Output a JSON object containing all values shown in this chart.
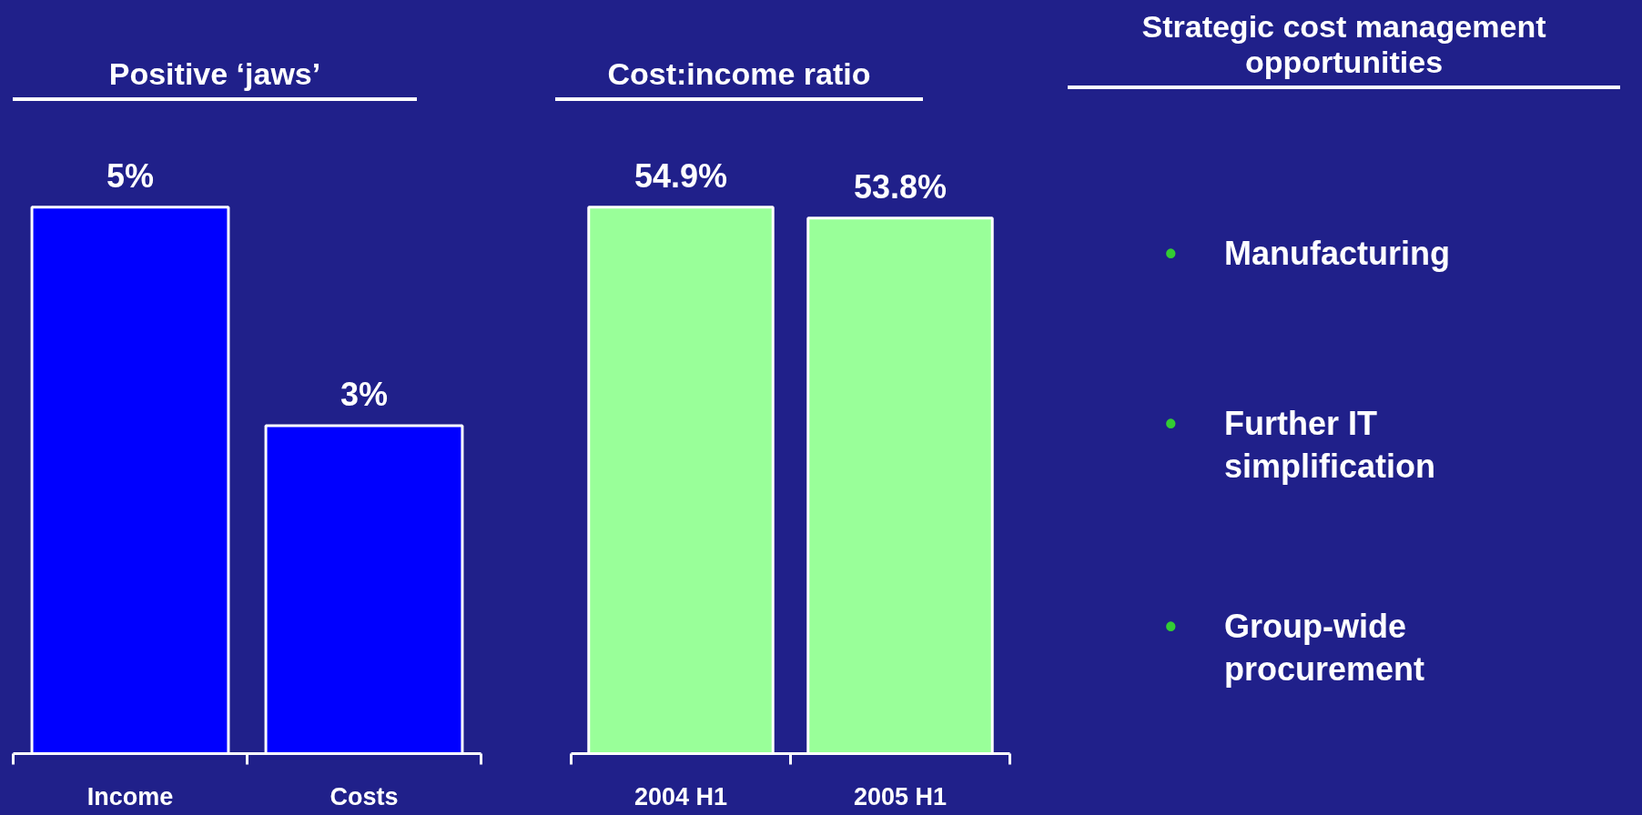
{
  "chart_data": [
    {
      "type": "bar",
      "title": "Positive ‘jaws’",
      "categories": [
        "Income",
        "Costs"
      ],
      "values": [
        5,
        3
      ],
      "value_labels": [
        "5%",
        "3%"
      ],
      "color": "#0000ff",
      "tick_labels": "x"
    },
    {
      "type": "bar",
      "title": "Cost:income ratio",
      "categories": [
        "2004 H1",
        "2005 H1"
      ],
      "values": [
        54.9,
        53.8
      ],
      "value_labels": [
        "54.9%",
        "53.8%"
      ],
      "color": "#99ff99",
      "tick_labels": "x"
    },
    {
      "type": "other",
      "title": "Strategic cost management opportunities",
      "annotations": [
        "• Manufacturing",
        "• Further IT simplification",
        "• Group-wide procurement"
      ]
    }
  ]
}
